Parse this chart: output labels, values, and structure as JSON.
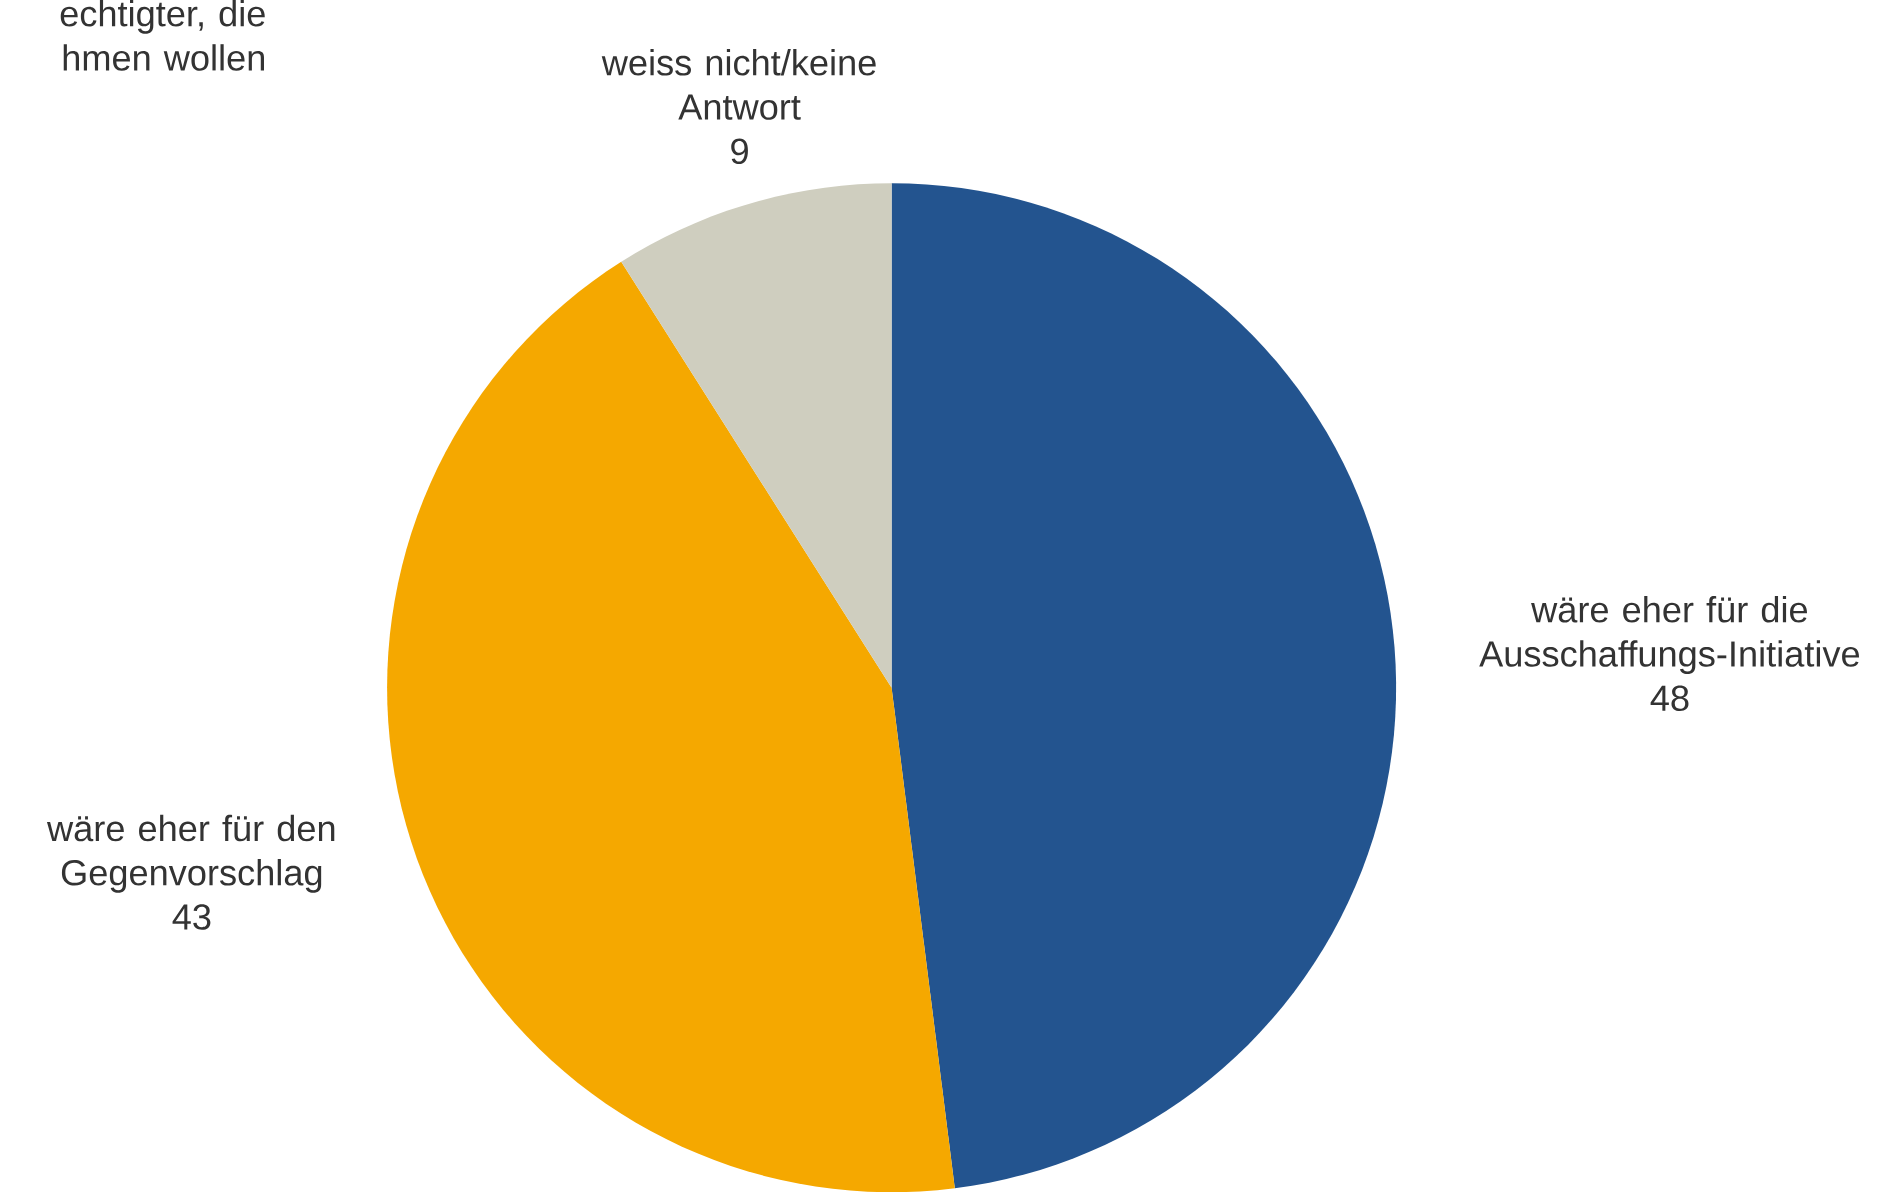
{
  "chart_data": {
    "type": "pie",
    "categories": [
      "wäre eher für die Ausschaffungs-Initiative",
      "wäre eher für den Gegenvorschlag",
      "weiss nicht/keine Antwort"
    ],
    "values": [
      48,
      43,
      9
    ],
    "colors": [
      "#23548f",
      "#f5a800",
      "#cfcebf"
    ],
    "data_labels": true,
    "annotations": [
      "echtigter, die hmen wollen"
    ]
  }
}
